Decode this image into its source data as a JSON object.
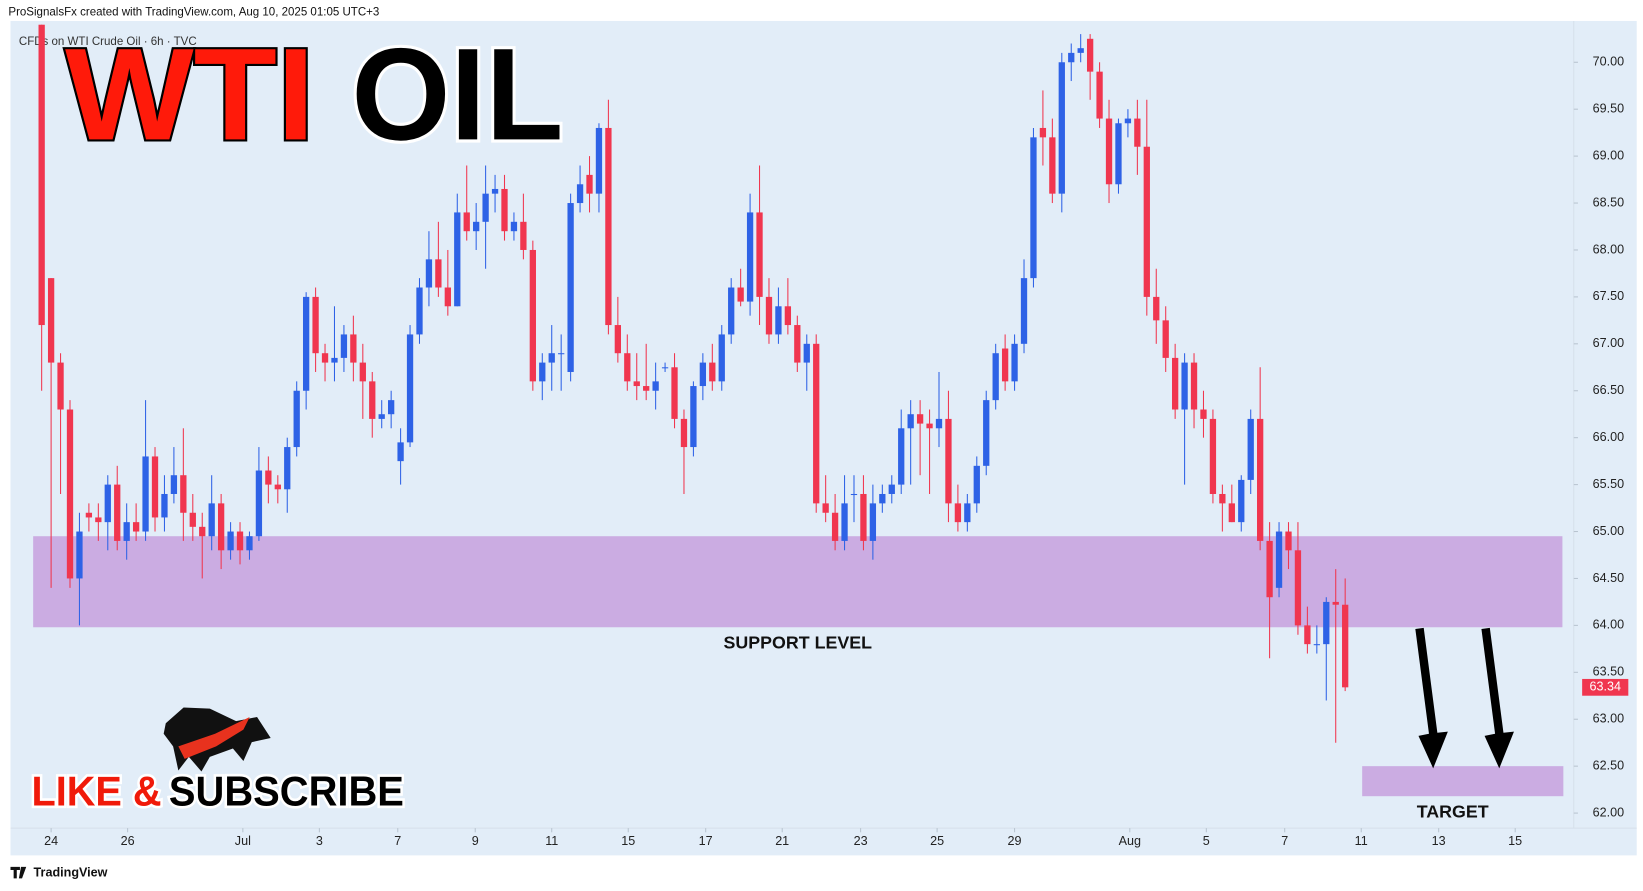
{
  "header": "ProSignalsFx created with TradingView.com, Aug 10, 2025 01:05 UTC+3",
  "footer": "TradingView",
  "chart_data": {
    "type": "candlestick",
    "subtitle": "CFDs on WTI Crude Oil · 6h · TVC",
    "title_parts": [
      "WTI",
      "OIL"
    ],
    "banner_parts": [
      "LIKE &",
      "SUBSCRIBE"
    ],
    "up_color": "#2e62e6",
    "down_color": "#f0364f",
    "open": [
      70.4,
      67.7,
      66.8,
      66.3,
      64.5,
      65.2,
      65.15,
      65.1,
      65.5,
      64.9,
      65.1,
      65.0,
      65.8,
      65.15,
      65.4,
      65.6,
      65.2,
      65.05,
      64.95,
      65.3,
      64.8,
      65.0,
      64.8,
      64.95,
      65.65,
      65.5,
      65.45,
      65.9,
      66.5,
      67.5,
      66.9,
      66.8,
      66.85,
      67.1,
      66.8,
      66.6,
      66.2,
      66.25,
      65.75,
      65.95,
      67.1,
      67.6,
      67.9,
      67.6,
      67.4,
      68.4,
      68.2,
      68.3,
      68.6,
      68.65,
      68.2,
      68.3,
      68.0,
      66.6,
      66.8,
      66.9,
      66.7,
      68.5,
      68.8,
      68.6,
      69.3,
      67.2,
      66.9,
      66.6,
      66.55,
      66.5,
      66.75,
      66.75,
      66.2,
      65.9,
      66.55,
      66.8,
      66.6,
      67.1,
      67.6,
      67.45,
      68.4,
      67.5,
      67.1,
      67.4,
      67.2,
      66.8,
      67.0,
      65.3,
      65.2,
      64.9,
      65.4,
      65.4,
      64.9,
      65.3,
      65.4,
      65.5,
      66.1,
      66.25,
      66.15,
      66.1,
      66.2,
      65.3,
      65.1,
      65.3,
      65.7,
      66.4,
      66.95,
      66.6,
      67.0,
      67.7,
      69.3,
      69.2,
      68.6,
      70.0,
      70.1,
      70.25,
      69.9,
      69.4,
      68.7,
      69.35,
      69.4,
      69.1,
      67.5,
      67.25,
      66.85,
      66.3,
      66.8,
      66.3,
      66.2,
      65.4,
      65.3,
      65.1,
      65.55,
      66.2,
      64.9,
      64.4,
      65.0,
      64.8,
      64.0,
      63.8,
      63.8,
      64.25,
      64.22
    ],
    "high": [
      70.4,
      67.7,
      66.9,
      66.4,
      65.2,
      65.3,
      65.3,
      65.6,
      65.7,
      65.3,
      65.3,
      66.4,
      65.9,
      65.6,
      65.9,
      66.1,
      65.4,
      65.2,
      65.6,
      65.4,
      65.1,
      65.1,
      65.0,
      65.9,
      65.8,
      65.6,
      66.0,
      66.6,
      67.55,
      67.6,
      67.0,
      67.4,
      67.2,
      67.3,
      67.0,
      66.7,
      66.4,
      66.5,
      66.1,
      67.2,
      67.7,
      68.2,
      68.3,
      68.0,
      68.6,
      68.9,
      68.5,
      68.9,
      68.8,
      68.8,
      68.4,
      68.6,
      68.1,
      66.9,
      67.2,
      67.1,
      68.6,
      68.9,
      69.0,
      69.35,
      69.6,
      67.5,
      67.1,
      66.9,
      67.0,
      66.8,
      66.8,
      66.9,
      66.3,
      66.6,
      66.9,
      67.0,
      67.2,
      67.7,
      67.8,
      68.6,
      68.9,
      67.7,
      67.6,
      67.7,
      67.3,
      67.1,
      67.1,
      65.6,
      65.4,
      65.6,
      65.6,
      65.6,
      65.5,
      65.5,
      65.6,
      66.3,
      66.4,
      66.4,
      66.3,
      66.7,
      66.5,
      65.5,
      65.4,
      65.8,
      66.5,
      67.0,
      67.1,
      67.1,
      67.9,
      69.3,
      69.7,
      69.4,
      70.1,
      70.2,
      70.3,
      70.3,
      70.0,
      69.6,
      69.4,
      69.5,
      69.6,
      69.6,
      67.8,
      67.4,
      67.0,
      66.9,
      66.9,
      66.5,
      66.3,
      65.5,
      65.5,
      65.6,
      66.3,
      66.75,
      65.1,
      65.1,
      65.1,
      65.1,
      64.2,
      64.0,
      64.3,
      64.6,
      64.5
    ],
    "low": [
      66.5,
      64.4,
      65.4,
      64.4,
      64.0,
      65.0,
      64.9,
      64.8,
      64.8,
      64.7,
      64.9,
      64.9,
      65.0,
      65.0,
      65.3,
      64.9,
      64.9,
      64.5,
      64.8,
      64.6,
      64.7,
      64.65,
      64.7,
      64.9,
      65.3,
      65.3,
      65.2,
      65.8,
      66.3,
      66.7,
      66.6,
      66.6,
      66.7,
      66.6,
      66.2,
      66.0,
      66.1,
      66.1,
      65.5,
      65.9,
      67.0,
      67.4,
      67.5,
      67.3,
      67.4,
      68.1,
      68.0,
      67.8,
      68.4,
      68.1,
      68.1,
      67.9,
      66.5,
      66.4,
      66.5,
      66.5,
      66.6,
      68.4,
      68.4,
      68.4,
      67.1,
      66.8,
      66.5,
      66.4,
      66.4,
      66.3,
      66.7,
      66.1,
      65.4,
      65.8,
      66.4,
      66.5,
      66.5,
      67.0,
      67.4,
      67.3,
      67.2,
      67.0,
      67.0,
      67.1,
      66.7,
      66.5,
      65.2,
      65.1,
      64.8,
      64.8,
      65.1,
      64.8,
      64.7,
      65.2,
      65.3,
      65.4,
      65.5,
      65.6,
      65.4,
      65.9,
      65.1,
      65.0,
      65.0,
      65.2,
      65.6,
      66.3,
      66.5,
      66.5,
      66.9,
      67.6,
      68.9,
      68.5,
      68.4,
      69.8,
      70.0,
      69.6,
      69.3,
      68.5,
      68.6,
      69.2,
      68.8,
      67.3,
      67.0,
      66.7,
      66.2,
      65.5,
      66.1,
      66.0,
      65.3,
      65.0,
      65.1,
      65.0,
      65.4,
      64.8,
      63.65,
      64.3,
      64.6,
      63.9,
      63.7,
      63.7,
      63.2,
      62.75,
      63.3
    ],
    "close": [
      67.2,
      66.8,
      66.3,
      64.5,
      65.0,
      65.15,
      65.1,
      65.5,
      64.9,
      65.1,
      65.0,
      65.8,
      65.15,
      65.4,
      65.6,
      65.2,
      65.05,
      64.95,
      65.3,
      64.8,
      65.0,
      64.8,
      64.95,
      65.65,
      65.5,
      65.45,
      65.9,
      66.5,
      67.5,
      66.9,
      66.8,
      66.85,
      67.1,
      66.8,
      66.6,
      66.2,
      66.25,
      66.4,
      65.95,
      67.1,
      67.6,
      67.9,
      67.6,
      67.4,
      68.4,
      68.2,
      68.3,
      68.6,
      68.65,
      68.2,
      68.3,
      68.0,
      66.6,
      66.8,
      66.9,
      66.9,
      68.5,
      68.7,
      68.6,
      69.3,
      67.2,
      66.9,
      66.6,
      66.55,
      66.5,
      66.6,
      66.75,
      66.2,
      65.9,
      66.55,
      66.8,
      66.6,
      67.1,
      67.6,
      67.45,
      68.4,
      67.5,
      67.1,
      67.4,
      67.2,
      66.8,
      67.0,
      65.3,
      65.2,
      64.9,
      65.3,
      65.4,
      64.9,
      65.3,
      65.4,
      65.5,
      66.1,
      66.25,
      66.15,
      66.1,
      66.2,
      65.3,
      65.1,
      65.3,
      65.7,
      66.4,
      66.9,
      66.6,
      67.0,
      67.7,
      69.2,
      69.2,
      68.6,
      70.0,
      70.1,
      70.15,
      69.9,
      69.4,
      68.7,
      69.35,
      69.4,
      69.1,
      67.5,
      67.25,
      66.85,
      66.3,
      66.8,
      66.3,
      66.2,
      65.4,
      65.3,
      65.1,
      65.55,
      66.2,
      64.9,
      64.3,
      65.0,
      64.8,
      64.0,
      63.8,
      63.8,
      64.25,
      64.22,
      63.34
    ],
    "xlim": [
      -3.3,
      162.2
    ],
    "xticks": [
      {
        "value": 1,
        "label": "24"
      },
      {
        "value": 9.1,
        "label": "26"
      },
      {
        "value": 21.3,
        "label": "Jul"
      },
      {
        "value": 29.4,
        "label": "3"
      },
      {
        "value": 37.7,
        "label": "7"
      },
      {
        "value": 45.9,
        "label": "9"
      },
      {
        "value": 54,
        "label": "11"
      },
      {
        "value": 62.1,
        "label": "15"
      },
      {
        "value": 70.3,
        "label": "17"
      },
      {
        "value": 78.4,
        "label": "21"
      },
      {
        "value": 86.7,
        "label": "23"
      },
      {
        "value": 94.8,
        "label": "25"
      },
      {
        "value": 103,
        "label": "29"
      },
      {
        "value": 115.2,
        "label": "Aug"
      },
      {
        "value": 123.3,
        "label": "5"
      },
      {
        "value": 131.6,
        "label": "7"
      },
      {
        "value": 139.7,
        "label": "11"
      },
      {
        "value": 147.9,
        "label": "13"
      },
      {
        "value": 156,
        "label": "15"
      }
    ],
    "ylim": [
      61.84,
      70.44
    ],
    "yticks": [
      {
        "value": 62,
        "label": "62.00"
      },
      {
        "value": 62.5,
        "label": "62.50"
      },
      {
        "value": 63,
        "label": "63.00"
      },
      {
        "value": 63.5,
        "label": "63.50"
      },
      {
        "value": 64,
        "label": "64.00"
      },
      {
        "value": 64.5,
        "label": "64.50"
      },
      {
        "value": 65,
        "label": "65.00"
      },
      {
        "value": 65.5,
        "label": "65.50"
      },
      {
        "value": 66,
        "label": "66.00"
      },
      {
        "value": 66.5,
        "label": "66.50"
      },
      {
        "value": 67,
        "label": "67.00"
      },
      {
        "value": 67.5,
        "label": "67.50"
      },
      {
        "value": 68,
        "label": "68.00"
      },
      {
        "value": 68.5,
        "label": "68.50"
      },
      {
        "value": 69,
        "label": "69.00"
      },
      {
        "value": 69.5,
        "label": "69.50"
      },
      {
        "value": 70,
        "label": "70.00"
      }
    ],
    "zones": [
      {
        "label": "SUPPORT LEVEL",
        "color": "#c9a9e0",
        "xlim": [
          -0.9,
          161
        ],
        "ylim": [
          63.98,
          64.95
        ]
      },
      {
        "label": "TARGET",
        "color": "#c9a9e0",
        "xlim": [
          139.8,
          161.1
        ],
        "ylim": [
          62.18,
          62.5
        ]
      }
    ]
  }
}
